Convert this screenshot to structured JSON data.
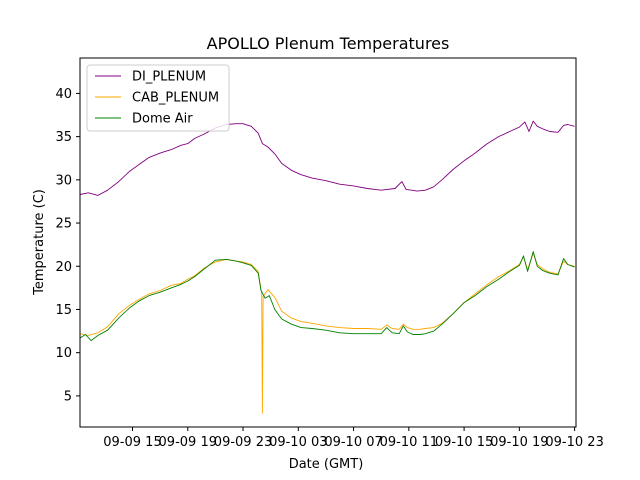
{
  "chart_data": {
    "type": "line",
    "title": "APOLLO Plenum Temperatures",
    "xlabel": "Date (GMT)",
    "ylabel": "Temperature (C)",
    "x_unit": "hours since 09-09 00:00 GMT",
    "xlim": [
      11.2,
      47.1
    ],
    "ylim": [
      1.4,
      44.1
    ],
    "xticks": [
      {
        "value": 15,
        "label": "09-09 15"
      },
      {
        "value": 19,
        "label": "09-09 19"
      },
      {
        "value": 23,
        "label": "09-09 23"
      },
      {
        "value": 27,
        "label": "09-10 03"
      },
      {
        "value": 31,
        "label": "09-10 07"
      },
      {
        "value": 35,
        "label": "09-10 11"
      },
      {
        "value": 39,
        "label": "09-10 15"
      },
      {
        "value": 43,
        "label": "09-10 19"
      },
      {
        "value": 47,
        "label": "09-10 23"
      }
    ],
    "yticks": [
      {
        "value": 5,
        "label": "5"
      },
      {
        "value": 10,
        "label": "10"
      },
      {
        "value": 15,
        "label": "15"
      },
      {
        "value": 20,
        "label": "20"
      },
      {
        "value": 25,
        "label": "25"
      },
      {
        "value": 30,
        "label": "30"
      },
      {
        "value": 35,
        "label": "35"
      },
      {
        "value": 40,
        "label": "40"
      }
    ],
    "legend": "upper-left",
    "series": [
      {
        "name": "DI_PLENUM",
        "color": "#800080",
        "x": [
          11.2,
          11.8,
          12.5,
          13.2,
          14.0,
          14.8,
          15.5,
          16.2,
          17.0,
          17.8,
          18.5,
          19.0,
          19.5,
          20.2,
          21.0,
          21.8,
          22.5,
          23.0,
          23.6,
          24.1,
          24.4,
          24.8,
          25.3,
          25.8,
          26.5,
          27.2,
          28.0,
          29.0,
          30.0,
          31.0,
          32.0,
          33.0,
          34.0,
          34.5,
          34.8,
          35.2,
          35.6,
          36.2,
          36.8,
          37.4,
          38.2,
          39.0,
          39.8,
          40.6,
          41.5,
          42.3,
          43.0,
          43.4,
          43.7,
          44.0,
          44.3,
          44.7,
          45.2,
          45.8,
          46.2,
          46.5,
          47.0
        ],
        "y": [
          28.3,
          28.5,
          28.2,
          28.8,
          29.8,
          31.0,
          31.8,
          32.6,
          33.1,
          33.5,
          34.0,
          34.2,
          34.8,
          35.3,
          36.0,
          36.4,
          36.5,
          36.5,
          36.2,
          35.4,
          34.2,
          33.8,
          33.0,
          31.9,
          31.1,
          30.6,
          30.2,
          29.9,
          29.5,
          29.3,
          29.0,
          28.8,
          29.0,
          29.8,
          28.9,
          28.8,
          28.7,
          28.8,
          29.2,
          30.0,
          31.2,
          32.2,
          33.1,
          34.1,
          35.0,
          35.6,
          36.1,
          36.7,
          35.6,
          36.8,
          36.2,
          35.9,
          35.6,
          35.5,
          36.3,
          36.4,
          36.2
        ]
      },
      {
        "name": "CAB_PLENUM",
        "color": "#ffa500",
        "x": [
          11.2,
          11.8,
          12.5,
          13.2,
          14.0,
          14.8,
          15.5,
          16.2,
          17.0,
          17.8,
          18.5,
          19.0,
          19.5,
          20.2,
          21.0,
          21.8,
          22.5,
          23.0,
          23.6,
          24.1,
          24.35,
          24.4,
          24.45,
          24.8,
          25.3,
          25.8,
          26.5,
          27.2,
          28.0,
          29.0,
          30.0,
          31.0,
          32.0,
          33.0,
          33.4,
          33.8,
          34.3,
          34.6,
          34.9,
          35.3,
          35.8,
          36.2,
          36.8,
          37.4,
          38.2,
          39.0,
          39.8,
          40.6,
          41.5,
          42.3,
          43.0,
          43.3,
          43.6,
          44.0,
          44.3,
          44.7,
          45.2,
          45.8,
          46.2,
          46.5,
          47.0
        ],
        "y": [
          12.2,
          12.0,
          12.3,
          13.0,
          14.5,
          15.5,
          16.2,
          16.8,
          17.2,
          17.8,
          18.0,
          18.5,
          18.9,
          19.8,
          20.5,
          20.8,
          20.6,
          20.5,
          20.2,
          19.4,
          16.8,
          3.0,
          16.5,
          17.3,
          16.4,
          14.8,
          14.0,
          13.6,
          13.4,
          13.1,
          12.9,
          12.8,
          12.8,
          12.7,
          13.2,
          12.8,
          12.7,
          13.3,
          12.9,
          12.7,
          12.7,
          12.8,
          12.9,
          13.4,
          14.5,
          15.8,
          16.8,
          17.8,
          18.8,
          19.5,
          20.2,
          21.1,
          19.6,
          21.5,
          20.2,
          19.7,
          19.3,
          19.1,
          20.6,
          20.2,
          20.0
        ]
      },
      {
        "name": "Dome Air",
        "color": "#008000",
        "x": [
          11.2,
          11.6,
          12.0,
          12.5,
          13.2,
          14.0,
          14.8,
          15.5,
          16.2,
          17.0,
          17.8,
          18.5,
          19.0,
          19.5,
          20.2,
          21.0,
          21.8,
          22.5,
          23.0,
          23.6,
          24.1,
          24.3,
          24.6,
          24.9,
          25.3,
          25.8,
          26.5,
          27.2,
          28.0,
          29.0,
          30.0,
          31.0,
          32.0,
          33.0,
          33.4,
          33.8,
          34.3,
          34.6,
          34.9,
          35.3,
          35.8,
          36.2,
          36.8,
          37.4,
          38.2,
          39.0,
          39.8,
          40.6,
          41.5,
          42.3,
          43.0,
          43.3,
          43.6,
          44.0,
          44.3,
          44.7,
          45.2,
          45.8,
          46.2,
          46.5,
          47.0
        ],
        "y": [
          11.7,
          12.1,
          11.4,
          12.0,
          12.6,
          14.0,
          15.2,
          16.0,
          16.6,
          17.0,
          17.5,
          17.9,
          18.3,
          18.8,
          19.7,
          20.7,
          20.8,
          20.6,
          20.4,
          20.1,
          19.2,
          17.2,
          16.3,
          16.6,
          15.0,
          13.9,
          13.3,
          12.9,
          12.8,
          12.6,
          12.3,
          12.2,
          12.2,
          12.2,
          12.9,
          12.3,
          12.2,
          13.1,
          12.4,
          12.1,
          12.1,
          12.2,
          12.5,
          13.3,
          14.5,
          15.8,
          16.6,
          17.6,
          18.5,
          19.4,
          20.1,
          21.2,
          19.4,
          21.7,
          20.0,
          19.5,
          19.2,
          19.0,
          20.9,
          20.2,
          19.9
        ]
      }
    ]
  }
}
